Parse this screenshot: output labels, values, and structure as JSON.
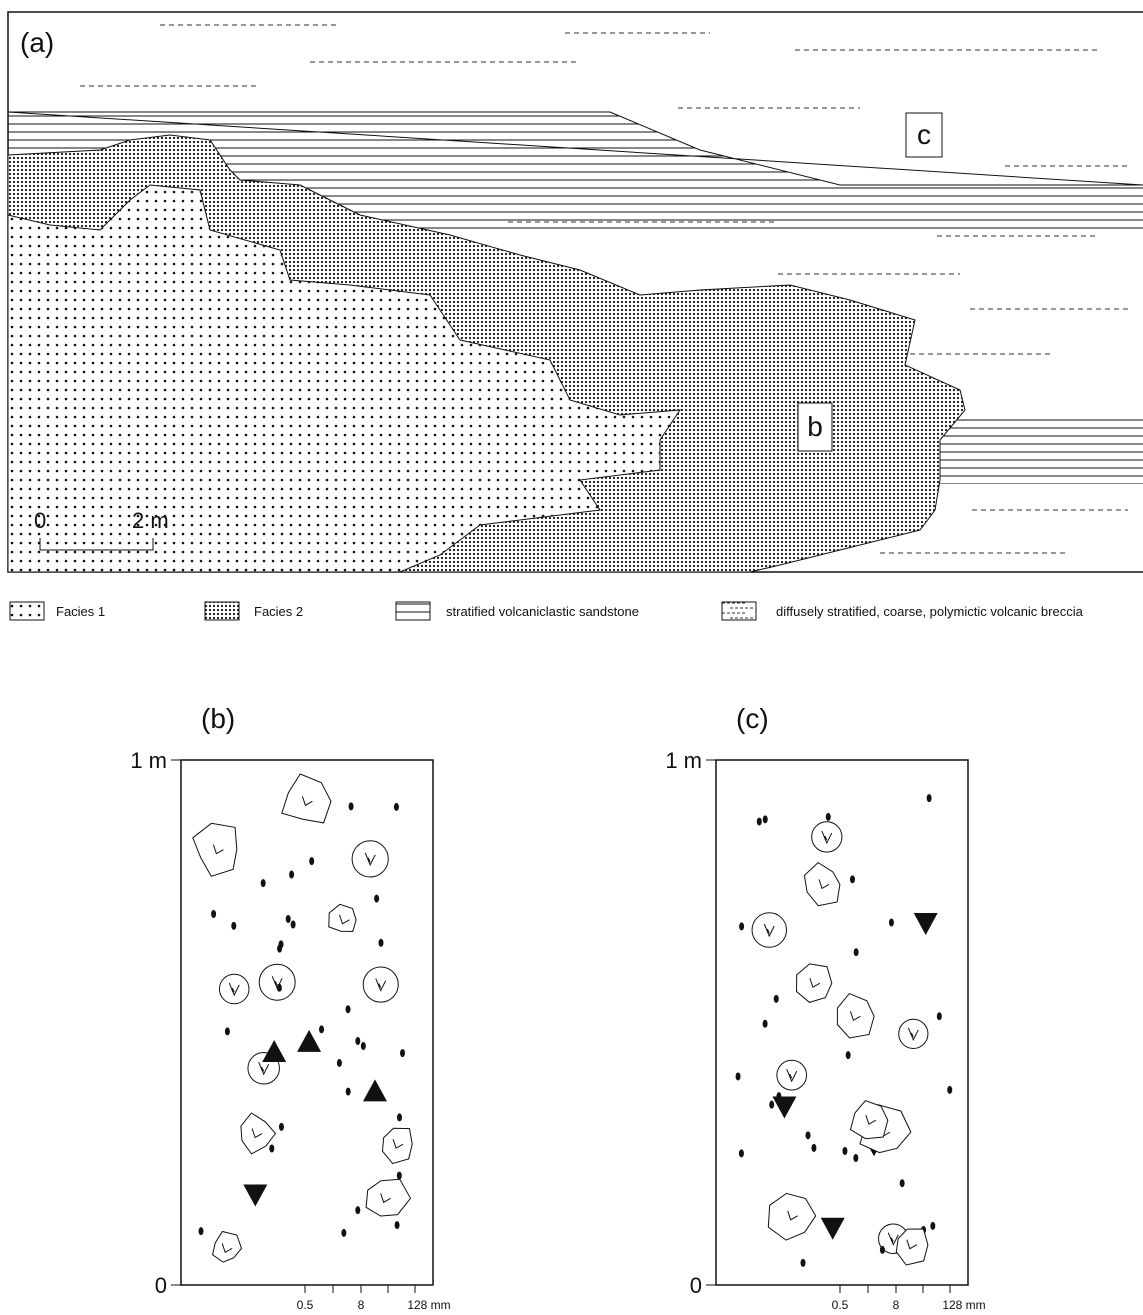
{
  "panel_a": {
    "label": "(a)",
    "box_labels": [
      "c",
      "b"
    ],
    "scale": {
      "start": "0",
      "end": "2 m"
    }
  },
  "legend": [
    "Facies 1",
    "Facies 2",
    "stratified volcaniclastic sandstone",
    "diffusely stratified, coarse, polymictic volcanic breccia"
  ],
  "logs": [
    {
      "label": "(b)",
      "top": "1 m",
      "bottom": "0",
      "grain_sizes": [
        "0.5",
        "8",
        "128 mm"
      ]
    },
    {
      "label": "(c)",
      "top": "1 m",
      "bottom": "0",
      "grain_sizes": [
        "0.5",
        "8",
        "128 mm"
      ]
    }
  ]
}
